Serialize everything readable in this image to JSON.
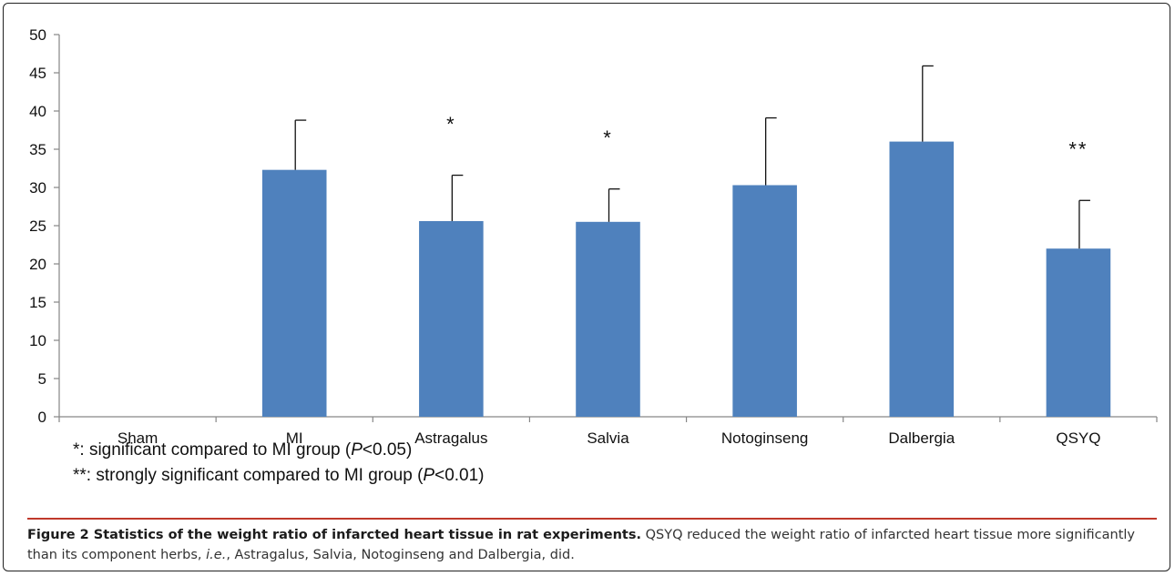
{
  "chart_data": {
    "type": "bar",
    "categories": [
      "Sham",
      "MI",
      "Astragalus",
      "Salvia",
      "Notoginseng",
      "Dalbergia",
      "QSYQ"
    ],
    "values": [
      0,
      32.3,
      25.6,
      25.5,
      30.3,
      36.0,
      22.0
    ],
    "error_upper": [
      0,
      38.8,
      31.6,
      29.8,
      39.1,
      45.9,
      28.3
    ],
    "significance": [
      "",
      "",
      "*",
      "*",
      "",
      "",
      "**"
    ],
    "ylim": [
      0,
      50
    ],
    "yticks": [
      0,
      5,
      10,
      15,
      20,
      25,
      30,
      35,
      40,
      45,
      50
    ],
    "bar_color": "#4f81bd",
    "grid": false,
    "xlabel": "",
    "ylabel": ""
  },
  "notes": {
    "one_star_symbol": "*",
    "one_star_text": ": significant compared to MI group (",
    "two_star_symbol": "**",
    "two_star_text": ": strongly significant compared to MI group (",
    "p_letter": "P",
    "p05": "<0.05)",
    "p01": "<0.01)"
  },
  "caption": {
    "label": "Figure 2 Statistics of the weight ratio of infarcted heart tissue in rat experiments.",
    "text_before": " QSYQ reduced the weight ratio of infarcted heart tissue more significantly than its component herbs, ",
    "ie": "i.e.",
    "text_after": ", Astragalus, Salvia, Notoginseng and Dalbergia, did."
  }
}
